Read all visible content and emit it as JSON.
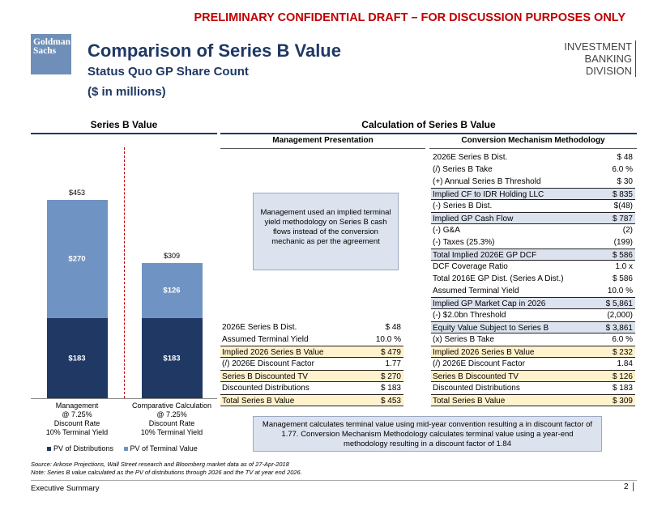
{
  "banner": "PRELIMINARY CONFIDENTIAL DRAFT – FOR DISCUSSION PURPOSES ONLY",
  "logo": {
    "line1": "Goldman",
    "line2": "Sachs"
  },
  "header": {
    "title": "Comparison of Series B Value",
    "subtitle": "Status Quo GP Share Count",
    "units": "($ in millions)",
    "division_line1": "INVESTMENT BANKING",
    "division_line2": "DIVISION"
  },
  "left_section_title": "Series B Value",
  "right_section_title": "Calculation of Series B Value",
  "chart_data": {
    "type": "bar",
    "stacked": true,
    "categories": [
      [
        "Management",
        "@ 7.25%",
        "Discount Rate",
        "10% Terminal Yield"
      ],
      [
        "Comparative Calculation",
        "@ 7.25%",
        "Discount Rate",
        "10% Terminal Yield"
      ]
    ],
    "series": [
      {
        "name": "PV of Distributions",
        "values": [
          183,
          183
        ],
        "labels": [
          "$183",
          "$183"
        ],
        "color": "#1f3864"
      },
      {
        "name": "PV of Terminal Value",
        "values": [
          270,
          126
        ],
        "labels": [
          "$270",
          "$126"
        ],
        "color": "#6f94c3"
      }
    ],
    "totals": [
      453,
      309
    ],
    "total_labels": [
      "$453",
      "$309"
    ],
    "title": "Series B Value",
    "ylim": [
      0,
      453
    ],
    "legend_position": "bottom-left"
  },
  "mgmt": {
    "heading": "Management  Presentation",
    "box_text": "Management used an implied terminal yield methodology on Series B cash flows instead of the conversion mechanic as per the agreement",
    "rows": [
      {
        "label": "2026E Series B Dist.",
        "value": "$ 48",
        "style": ""
      },
      {
        "label": "Assumed Terminal Yield",
        "value": "10.0 %",
        "style": ""
      },
      {
        "label": "Implied 2026 Series B Value",
        "value": "$ 479",
        "style": "hl-yel"
      },
      {
        "label": "(/) 2026E Discount Factor",
        "value": "1.77",
        "style": ""
      },
      {
        "label": "Series B Discounted TV",
        "value": "$ 270",
        "style": "hl-yel"
      },
      {
        "label": "Discounted Distributions",
        "value": "$ 183",
        "style": ""
      },
      {
        "label": "Total Series B Value",
        "value": "$ 453",
        "style": "hl-yel"
      }
    ]
  },
  "conv": {
    "heading": "Conversion Mechanism Methodology",
    "rows": [
      {
        "label": "2026E Series B Dist.",
        "value": "$ 48",
        "style": ""
      },
      {
        "label": "(/) Series B Take",
        "value": "6.0 %",
        "style": ""
      },
      {
        "label": "(+) Annual Series B Threshold",
        "value": "$ 30",
        "style": ""
      },
      {
        "label": "Implied CF to IDR Holding LLC",
        "value": "$ 835",
        "style": "hl-blue"
      },
      {
        "label": "(-) Series B Dist.",
        "value": "$(48)",
        "style": ""
      },
      {
        "label": "Implied GP Cash Flow",
        "value": "$ 787",
        "style": "hl-blue"
      },
      {
        "label": "(-) G&A",
        "value": "(2)",
        "style": ""
      },
      {
        "label": "(-) Taxes (25.3%)",
        "value": "(199)",
        "style": ""
      },
      {
        "label": "Total Implied 2026E GP DCF",
        "value": "$ 586",
        "style": "hl-blue"
      },
      {
        "label": "DCF Coverage Ratio",
        "value": "1.0 x",
        "style": ""
      },
      {
        "label": "Total 2016E GP Dist. (Series A Dist.)",
        "value": "$ 586",
        "style": ""
      },
      {
        "label": "Assumed Terminal Yield",
        "value": "10.0 %",
        "style": ""
      },
      {
        "label": "Implied GP Market Cap in 2026",
        "value": "$ 5,861",
        "style": "hl-blue"
      },
      {
        "label": "(-) $2.0bn Threshold",
        "value": "(2,000)",
        "style": ""
      },
      {
        "label": "Equity Value Subject to Series B",
        "value": "$ 3,861",
        "style": "hl-blue"
      },
      {
        "label": "(x) Series B Take",
        "value": "6.0 %",
        "style": ""
      },
      {
        "label": "Implied 2026 Series B Value",
        "value": "$ 232",
        "style": "hl-yel"
      },
      {
        "label": "(/) 2026E Discount Factor",
        "value": "1.84",
        "style": ""
      },
      {
        "label": "Series B Discounted TV",
        "value": "$ 126",
        "style": "hl-yel"
      },
      {
        "label": "Discounted Distributions",
        "value": "$ 183",
        "style": ""
      },
      {
        "label": "Total Series B Value",
        "value": "$ 309",
        "style": "hl-yel"
      }
    ]
  },
  "note": "Management calculates terminal value using mid-year convention resulting a in discount factor of 1.77. Conversion Mechanism Methodology calculates terminal value using a year-end methodology resulting in a discount factor of 1.84",
  "source_line1": "Source: Arkose Projections, Wall Street research and Bloomberg market data as of 27-Apr-2018",
  "source_line2": "Note: Series B value calculated as the PV of distributions through 2026 and the TV at year end 2026.",
  "footer": {
    "section": "Executive Summary",
    "page": "2"
  }
}
